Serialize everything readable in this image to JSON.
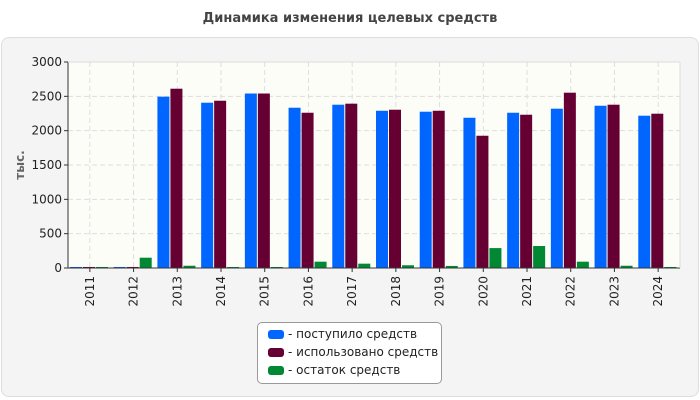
{
  "chart_data": {
    "type": "bar",
    "title": "Динамика изменения целевых средств",
    "ylabel": "тыс.",
    "xlabel": "",
    "ylim": [
      0,
      3000
    ],
    "yticks": [
      0,
      500,
      1000,
      1500,
      2000,
      2500,
      3000
    ],
    "grid": true,
    "legend_position": "bottom-center",
    "categories": [
      "2011",
      "2012",
      "2013",
      "2014",
      "2015",
      "2016",
      "2017",
      "2018",
      "2019",
      "2020",
      "2021",
      "2022",
      "2023",
      "2024"
    ],
    "series": [
      {
        "name": "- поступило средств",
        "color": "#0066ff",
        "values": [
          15,
          15,
          2495,
          2407,
          2541,
          2334,
          2378,
          2290,
          2276,
          2188,
          2261,
          2320,
          2363,
          2218
        ]
      },
      {
        "name": "- использовано средств",
        "color": "#660033",
        "values": [
          15,
          15,
          2611,
          2436,
          2541,
          2261,
          2393,
          2305,
          2290,
          1926,
          2232,
          2553,
          2378,
          2247
        ]
      },
      {
        "name": "- остаток средств",
        "color": "#008833",
        "values": [
          15,
          150,
          33,
          15,
          15,
          92,
          63,
          40,
          30,
          290,
          320,
          92,
          33,
          15
        ]
      }
    ]
  }
}
